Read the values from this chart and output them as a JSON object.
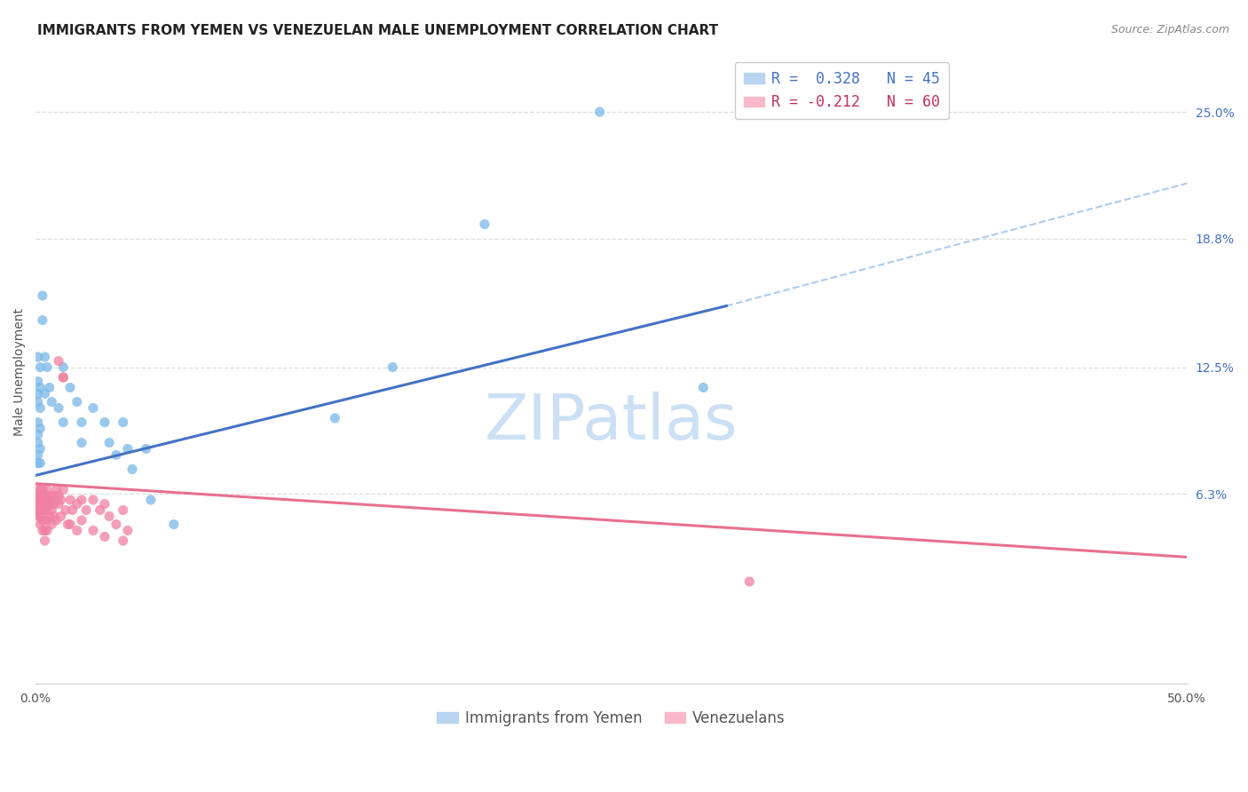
{
  "title": "IMMIGRANTS FROM YEMEN VS VENEZUELAN MALE UNEMPLOYMENT CORRELATION CHART",
  "source": "Source: ZipAtlas.com",
  "ylabel": "Male Unemployment",
  "y_tick_values_right": [
    0.25,
    0.188,
    0.125,
    0.063
  ],
  "y_tick_labels_right": [
    "25.0%",
    "18.8%",
    "12.5%",
    "6.3%"
  ],
  "xlim": [
    0.0,
    0.5
  ],
  "ylim": [
    -0.03,
    0.275
  ],
  "watermark": "ZIPatlas",
  "series": [
    {
      "name": "Immigrants from Yemen",
      "color": "#7ab8e8",
      "line_color": "#4472c4",
      "solid_trend_x": [
        0.0,
        0.3
      ],
      "solid_trend_y": [
        0.072,
        0.155
      ],
      "dash_trend_x": [
        0.3,
        0.5
      ],
      "dash_trend_y": [
        0.155,
        0.215
      ],
      "points": [
        [
          0.001,
          0.13
        ],
        [
          0.001,
          0.118
        ],
        [
          0.001,
          0.112
        ],
        [
          0.001,
          0.108
        ],
        [
          0.001,
          0.098
        ],
        [
          0.001,
          0.092
        ],
        [
          0.001,
          0.088
        ],
        [
          0.001,
          0.082
        ],
        [
          0.001,
          0.078
        ],
        [
          0.002,
          0.125
        ],
        [
          0.002,
          0.115
        ],
        [
          0.002,
          0.105
        ],
        [
          0.002,
          0.095
        ],
        [
          0.002,
          0.085
        ],
        [
          0.002,
          0.078
        ],
        [
          0.003,
          0.16
        ],
        [
          0.003,
          0.148
        ],
        [
          0.004,
          0.13
        ],
        [
          0.004,
          0.112
        ],
        [
          0.005,
          0.125
        ],
        [
          0.006,
          0.115
        ],
        [
          0.007,
          0.108
        ],
        [
          0.01,
          0.105
        ],
        [
          0.012,
          0.125
        ],
        [
          0.012,
          0.098
        ],
        [
          0.015,
          0.115
        ],
        [
          0.018,
          0.108
        ],
        [
          0.02,
          0.098
        ],
        [
          0.02,
          0.088
        ],
        [
          0.025,
          0.105
        ],
        [
          0.03,
          0.098
        ],
        [
          0.032,
          0.088
        ],
        [
          0.035,
          0.082
        ],
        [
          0.038,
          0.098
        ],
        [
          0.04,
          0.085
        ],
        [
          0.042,
          0.075
        ],
        [
          0.048,
          0.085
        ],
        [
          0.05,
          0.06
        ],
        [
          0.06,
          0.048
        ],
        [
          0.13,
          0.1
        ],
        [
          0.155,
          0.125
        ],
        [
          0.195,
          0.195
        ],
        [
          0.245,
          0.25
        ],
        [
          0.29,
          0.115
        ]
      ]
    },
    {
      "name": "Venezuelans",
      "color": "#f080a0",
      "line_color": "#e87090",
      "solid_trend_x": [
        0.0,
        0.5
      ],
      "solid_trend_y": [
        0.068,
        0.032
      ],
      "points": [
        [
          0.001,
          0.065
        ],
        [
          0.001,
          0.062
        ],
        [
          0.001,
          0.06
        ],
        [
          0.001,
          0.058
        ],
        [
          0.001,
          0.055
        ],
        [
          0.001,
          0.052
        ],
        [
          0.002,
          0.065
        ],
        [
          0.002,
          0.062
        ],
        [
          0.002,
          0.058
        ],
        [
          0.002,
          0.055
        ],
        [
          0.002,
          0.052
        ],
        [
          0.002,
          0.048
        ],
        [
          0.003,
          0.065
        ],
        [
          0.003,
          0.062
        ],
        [
          0.003,
          0.058
        ],
        [
          0.003,
          0.055
        ],
        [
          0.003,
          0.05
        ],
        [
          0.003,
          0.045
        ],
        [
          0.004,
          0.062
        ],
        [
          0.004,
          0.058
        ],
        [
          0.004,
          0.055
        ],
        [
          0.004,
          0.05
        ],
        [
          0.004,
          0.045
        ],
        [
          0.004,
          0.04
        ],
        [
          0.005,
          0.065
        ],
        [
          0.005,
          0.06
        ],
        [
          0.005,
          0.055
        ],
        [
          0.005,
          0.05
        ],
        [
          0.005,
          0.045
        ],
        [
          0.006,
          0.062
        ],
        [
          0.006,
          0.058
        ],
        [
          0.006,
          0.052
        ],
        [
          0.007,
          0.06
        ],
        [
          0.007,
          0.055
        ],
        [
          0.007,
          0.048
        ],
        [
          0.008,
          0.062
        ],
        [
          0.008,
          0.058
        ],
        [
          0.008,
          0.052
        ],
        [
          0.009,
          0.065
        ],
        [
          0.009,
          0.05
        ],
        [
          0.01,
          0.062
        ],
        [
          0.01,
          0.058
        ],
        [
          0.01,
          0.128
        ],
        [
          0.011,
          0.06
        ],
        [
          0.011,
          0.052
        ],
        [
          0.012,
          0.065
        ],
        [
          0.012,
          0.12
        ],
        [
          0.012,
          0.12
        ],
        [
          0.013,
          0.055
        ],
        [
          0.014,
          0.048
        ],
        [
          0.015,
          0.06
        ],
        [
          0.015,
          0.048
        ],
        [
          0.016,
          0.055
        ],
        [
          0.018,
          0.058
        ],
        [
          0.018,
          0.045
        ],
        [
          0.02,
          0.06
        ],
        [
          0.02,
          0.05
        ],
        [
          0.022,
          0.055
        ],
        [
          0.025,
          0.06
        ],
        [
          0.025,
          0.045
        ],
        [
          0.028,
          0.055
        ],
        [
          0.03,
          0.058
        ],
        [
          0.03,
          0.042
        ],
        [
          0.032,
          0.052
        ],
        [
          0.035,
          0.048
        ],
        [
          0.038,
          0.055
        ],
        [
          0.038,
          0.04
        ],
        [
          0.04,
          0.045
        ],
        [
          0.31,
          0.02
        ]
      ]
    }
  ],
  "grid_color": "#dddddd",
  "background_color": "#ffffff",
  "title_fontsize": 11,
  "axis_label_fontsize": 10,
  "tick_fontsize": 10,
  "source_fontsize": 9,
  "watermark_fontsize": 52,
  "watermark_color": "#cce0f5",
  "legend_fontsize": 12
}
